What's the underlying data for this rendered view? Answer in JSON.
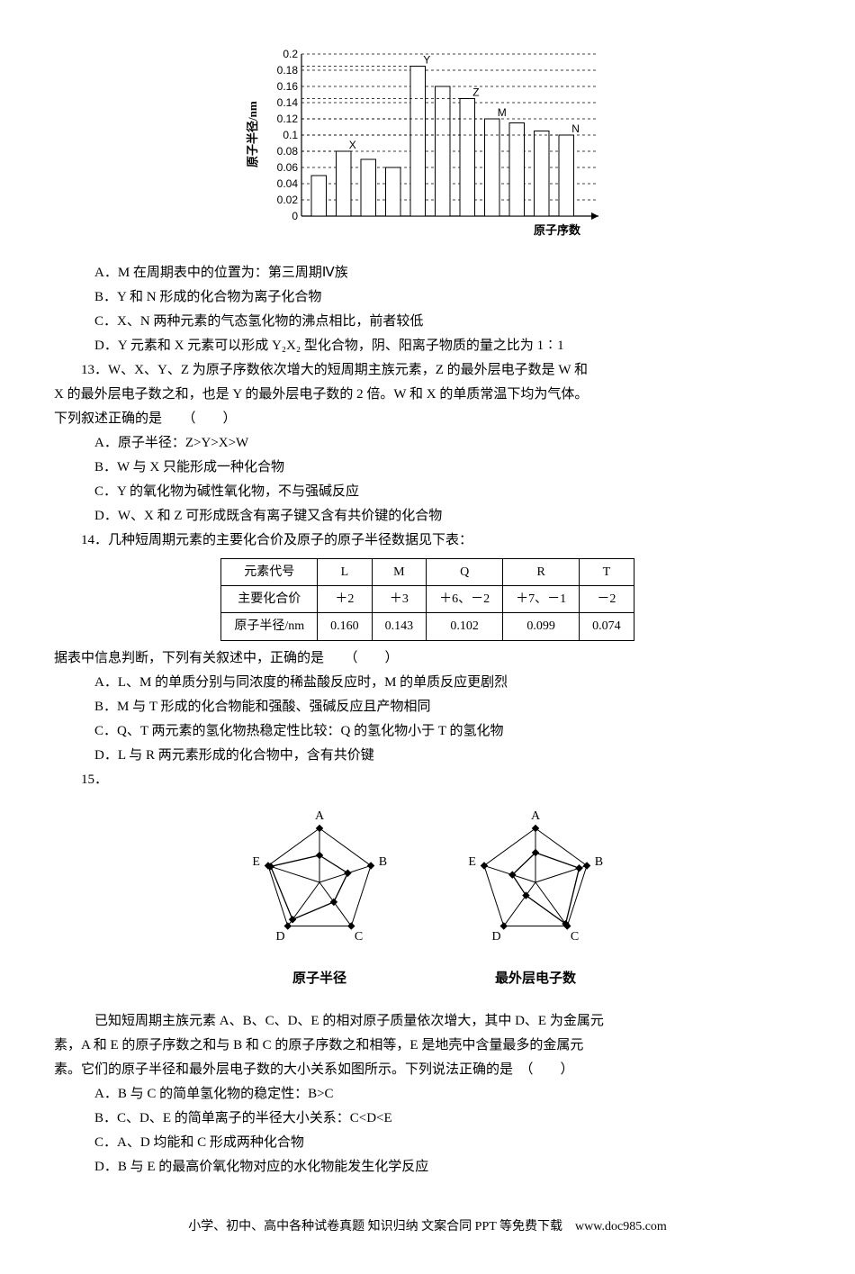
{
  "bar_chart": {
    "type": "bar",
    "y_label": "原子半径/nm",
    "x_label": "原子序数",
    "ylim": [
      0,
      0.2
    ],
    "y_ticks": [
      0,
      0.02,
      0.04,
      0.06,
      0.08,
      0.1,
      0.12,
      0.14,
      0.16,
      0.18,
      0.2
    ],
    "bars": [
      {
        "x": 1,
        "value": 0.05
      },
      {
        "x": 2,
        "value": 0.08,
        "label": "X"
      },
      {
        "x": 3,
        "value": 0.07
      },
      {
        "x": 4,
        "value": 0.06
      },
      {
        "x": 5,
        "value": 0.185,
        "label": "Y"
      },
      {
        "x": 6,
        "value": 0.16
      },
      {
        "x": 7,
        "value": 0.145,
        "label": "Z"
      },
      {
        "x": 8,
        "value": 0.12,
        "label": "M"
      },
      {
        "x": 9,
        "value": 0.115
      },
      {
        "x": 10,
        "value": 0.105
      },
      {
        "x": 11,
        "value": 0.1,
        "label": "N"
      }
    ],
    "bar_color": "#ffffff",
    "bar_border": "#000000",
    "grid_color": "#000000",
    "background_color": "#ffffff",
    "font_size": 12,
    "axis_font_weight": "bold"
  },
  "q12": {
    "options": {
      "A": "A．M 在周期表中的位置为：第三周期Ⅳ族",
      "B": "B．Y 和 N 形成的化合物为离子化合物",
      "C": "C．X、N 两种元素的气态氢化物的沸点相比，前者较低",
      "D": "D．Y 元素和 X 元素可以形成 Y₂X₂ 型化合物，阴、阳离子物质的量之比为 1∶1"
    }
  },
  "q13": {
    "stem1": "13．W、X、Y、Z 为原子序数依次增大的短周期主族元素，Z 的最外层电子数是 W 和",
    "stem2": "X 的最外层电子数之和，也是 Y 的最外层电子数的 2 倍。W 和 X 的单质常温下均为气体。",
    "stem3": "下列叙述正确的是　　（　　）",
    "options": {
      "A": "A．原子半径：Z>Y>X>W",
      "B": "B．W 与 X 只能形成一种化合物",
      "C": "C．Y 的氧化物为碱性氧化物，不与强碱反应",
      "D": "D．W、X 和 Z 可形成既含有离子键又含有共价键的化合物"
    }
  },
  "q14": {
    "stem": "14．几种短周期元素的主要化合价及原子的原子半径数据见下表：",
    "table": {
      "columns": [
        "元素代号",
        "L",
        "M",
        "Q",
        "R",
        "T"
      ],
      "rows": [
        [
          "主要化合价",
          "＋2",
          "＋3",
          "＋6、－2",
          "＋7、－1",
          "－2"
        ],
        [
          "原子半径/nm",
          "0.160",
          "0.143",
          "0.102",
          "0.099",
          "0.074"
        ]
      ],
      "border_color": "#000000",
      "font_size": 14
    },
    "after": "据表中信息判断，下列有关叙述中，正确的是　　（　　）",
    "options": {
      "A": "A．L、M 的单质分别与同浓度的稀盐酸反应时，M 的单质反应更剧烈",
      "B": "B．M 与 T 形成的化合物能和强酸、强碱反应且产物相同",
      "C": "C．Q、T 两元素的氢化物热稳定性比较：Q 的氢化物小于 T 的氢化物",
      "D": "D．L 与 R 两元素形成的化合物中，含有共价键"
    }
  },
  "q15": {
    "stem": "15．",
    "radar_left": {
      "caption": "原子半径",
      "labels": [
        "A",
        "B",
        "C",
        "D",
        "E"
      ],
      "values": [
        0.5,
        0.55,
        0.45,
        0.85,
        0.95
      ],
      "stroke": "#000000",
      "fill": "none"
    },
    "radar_right": {
      "caption": "最外层电子数",
      "labels": [
        "A",
        "B",
        "C",
        "D",
        "E"
      ],
      "values": [
        0.55,
        0.85,
        0.95,
        0.3,
        0.45
      ],
      "stroke": "#000000",
      "fill": "none"
    },
    "para1": "已知短周期主族元素 A、B、C、D、E 的相对原子质量依次增大，其中 D、E 为金属元",
    "para2": "素，A 和 E 的原子序数之和与 B 和 C 的原子序数之和相等，E 是地壳中含量最多的金属元",
    "para3": "素。它们的原子半径和最外层电子数的大小关系如图所示。下列说法正确的是　（　　）",
    "options": {
      "A": "A．B 与 C 的简单氢化物的稳定性：B>C",
      "B": "B．C、D、E 的简单离子的半径大小关系：C<D<E",
      "C": "C．A、D 均能和 C 形成两种化合物",
      "D": "D．B 与 E 的最高价氧化物对应的水化物能发生化学反应"
    }
  },
  "footer": "小学、初中、高中各种试卷真题  知识归纳  文案合同  PPT 等免费下载　www.doc985.com"
}
